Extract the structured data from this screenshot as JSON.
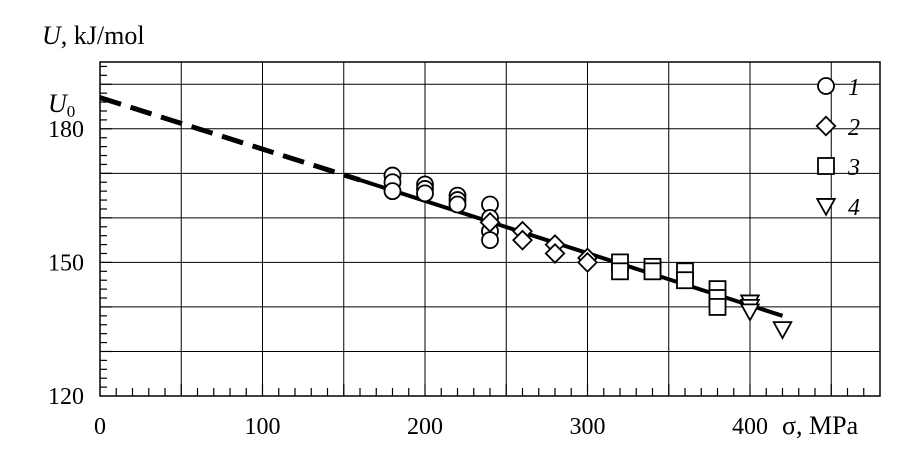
{
  "chart_data": {
    "type": "scatter",
    "ylabel_italic": "U",
    "ylabel_rest": ", kJ/mol",
    "xlabel": "σ, MPa",
    "u0_label": {
      "main": "U",
      "sub": "0"
    },
    "xlim": [
      0,
      480
    ],
    "ylim": [
      120,
      195
    ],
    "x_ticks": [
      0,
      100,
      200,
      300,
      400
    ],
    "y_ticks": [
      120,
      150,
      180
    ],
    "grid": true,
    "legend_position": "right",
    "fit_line": {
      "start": [
        0,
        187
      ],
      "dash_end": [
        160,
        168.5
      ],
      "end": [
        420,
        138
      ],
      "style_note": "dashed extrapolation then solid"
    },
    "series": [
      {
        "name": "1",
        "marker": "circle",
        "x": [
          180,
          180,
          180,
          200,
          200,
          200,
          220,
          220,
          220,
          240,
          240,
          240,
          240
        ],
        "y": [
          169.5,
          168,
          166,
          167.5,
          166.5,
          165.5,
          165,
          164,
          163,
          163,
          160,
          157,
          155
        ]
      },
      {
        "name": "2",
        "marker": "diamond",
        "x": [
          240,
          260,
          260,
          280,
          280,
          300,
          300
        ],
        "y": [
          159,
          157,
          155,
          154,
          152,
          151,
          150
        ]
      },
      {
        "name": "3",
        "marker": "square",
        "x": [
          320,
          320,
          340,
          340,
          360,
          360,
          380,
          380,
          380
        ],
        "y": [
          150,
          148,
          149,
          148,
          148,
          146,
          144,
          142,
          140
        ]
      },
      {
        "name": "4",
        "marker": "triangle-down",
        "x": [
          400,
          400,
          400,
          420
        ],
        "y": [
          141,
          140,
          139,
          135
        ]
      }
    ]
  }
}
